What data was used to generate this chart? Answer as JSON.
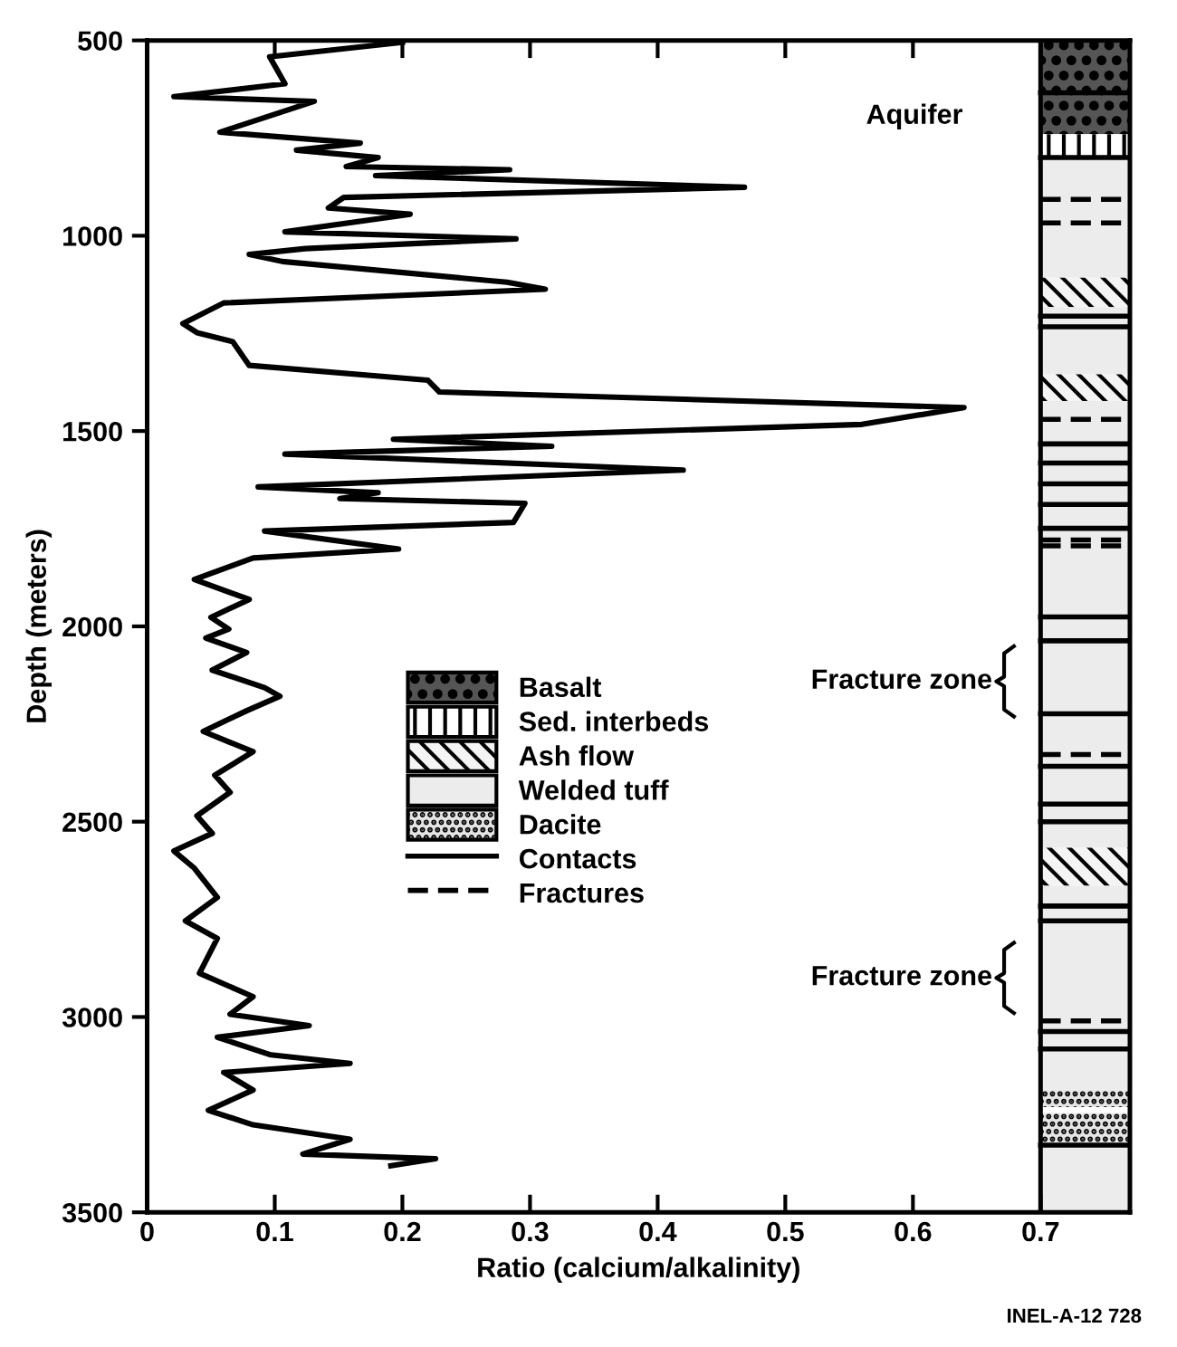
{
  "chart_data": {
    "type": "line",
    "xlabel": "Ratio (calcium/alkalinity)",
    "ylabel": "Depth (meters)",
    "series": [
      {
        "color": "#000000",
        "x": [
          0.2,
          0.096,
          0.108,
          0.021,
          0.131,
          0.057,
          0.167,
          0.117,
          0.181,
          0.156,
          0.284,
          0.179,
          0.468,
          0.154,
          0.142,
          0.206,
          0.108,
          0.289,
          0.124,
          0.08,
          0.106,
          0.282,
          0.312,
          0.06,
          0.028,
          0.039,
          0.067,
          0.08,
          0.22,
          0.229,
          0.64,
          0.56,
          0.193,
          0.317,
          0.108,
          0.42,
          0.087,
          0.181,
          0.151,
          0.296,
          0.287,
          0.092,
          0.197,
          0.083,
          0.037,
          0.08,
          0.05,
          0.064,
          0.046,
          0.078,
          0.051,
          0.092,
          0.104,
          0.078,
          0.044,
          0.083,
          0.053,
          0.065,
          0.039,
          0.051,
          0.021,
          0.037,
          0.055,
          0.03,
          0.055,
          0.041,
          0.083,
          0.065,
          0.127,
          0.055,
          0.097,
          0.159,
          0.06,
          0.083,
          0.048,
          0.083,
          0.159,
          0.122,
          0.226,
          0.191
        ],
        "values": [
          505,
          542,
          611,
          644,
          656,
          735,
          763,
          781,
          800,
          823,
          831,
          846,
          876,
          902,
          929,
          945,
          990,
          1008,
          1033,
          1048,
          1066,
          1119,
          1137,
          1172,
          1225,
          1248,
          1271,
          1332,
          1370,
          1400,
          1440,
          1483,
          1521,
          1539,
          1559,
          1600,
          1643,
          1658,
          1673,
          1685,
          1734,
          1756,
          1802,
          1825,
          1880,
          1931,
          1977,
          2007,
          2030,
          2067,
          2112,
          2157,
          2179,
          2216,
          2269,
          2321,
          2381,
          2425,
          2485,
          2530,
          2575,
          2619,
          2694,
          2754,
          2799,
          2888,
          2948,
          2993,
          3022,
          3052,
          3097,
          3119,
          3142,
          3187,
          3239,
          3276,
          3313,
          3351,
          3363,
          3381
        ]
      }
    ],
    "xlim": [
      0,
      0.77
    ],
    "xticks": [
      0,
      0.1,
      0.2,
      0.3,
      0.4,
      0.5,
      0.6,
      0.7
    ],
    "ylim": [
      3500,
      500
    ],
    "yticks": [
      500,
      1000,
      1500,
      2000,
      2500,
      3000,
      3500
    ],
    "line_style": "solid",
    "marker": "none",
    "grid": false,
    "legend": "left",
    "bands": [
      {
        "axis": "y",
        "from": 500,
        "to": 634,
        "label": "Basalt",
        "color": "#555555"
      },
      {
        "axis": "y",
        "from": 634,
        "to": 740,
        "color": "#555555"
      },
      {
        "axis": "y",
        "from": 740,
        "to": 800,
        "label": "Sed. interbeds",
        "color": "#ffffff"
      },
      {
        "axis": "y",
        "from": 1107,
        "to": 1183,
        "label": "Ash flow",
        "color": "#f4f4f4"
      },
      {
        "axis": "y",
        "from": 800,
        "to": 1107,
        "label": "Welded tuff",
        "color": "#ececec"
      },
      {
        "axis": "y",
        "from": 1183,
        "to": 1355,
        "color": "#ececec"
      },
      {
        "axis": "y",
        "from": 1355,
        "to": 1423,
        "color": "#f4f4f4"
      },
      {
        "axis": "y",
        "from": 1423,
        "to": 2567,
        "color": "#ececec"
      },
      {
        "axis": "y",
        "from": 2567,
        "to": 2664,
        "color": "#f4f4f4"
      },
      {
        "axis": "y",
        "from": 2664,
        "to": 3187,
        "color": "#ececec"
      },
      {
        "axis": "y",
        "from": 3187,
        "to": 3231,
        "label": "Dacite",
        "color": "#e4e4e4"
      },
      {
        "axis": "y",
        "from": 3246,
        "to": 3321,
        "color": "#e4e4e4"
      },
      {
        "axis": "y",
        "from": 3321,
        "to": 3500,
        "color": "#ececec"
      }
    ],
    "ref_lines": [
      {
        "axis": "x",
        "value": 0.7
      },
      {
        "axis": "y",
        "value": 634,
        "label": "Contacts",
        "line_style": "solid"
      },
      {
        "axis": "y",
        "value": 800,
        "line_style": "solid"
      },
      {
        "axis": "y",
        "value": 907,
        "label": "Fractures",
        "line_style": "dashed"
      },
      {
        "axis": "y",
        "value": 967,
        "line_style": "dashed"
      },
      {
        "axis": "y",
        "value": 1206,
        "line_style": "solid"
      },
      {
        "axis": "y",
        "value": 1233,
        "line_style": "solid"
      },
      {
        "axis": "y",
        "value": 1470,
        "line_style": "dashed"
      },
      {
        "axis": "y",
        "value": 1533,
        "line_style": "solid"
      },
      {
        "axis": "y",
        "value": 1582,
        "line_style": "solid"
      },
      {
        "axis": "y",
        "value": 1635,
        "line_style": "solid"
      },
      {
        "axis": "y",
        "value": 1688,
        "line_style": "solid"
      },
      {
        "axis": "y",
        "value": 1749,
        "line_style": "solid"
      },
      {
        "axis": "y",
        "value": 1779,
        "line_style": "dashed"
      },
      {
        "axis": "y",
        "value": 1794,
        "line_style": "dashed"
      },
      {
        "axis": "y",
        "value": 1976,
        "line_style": "solid"
      },
      {
        "axis": "y",
        "value": 2037,
        "line_style": "solid"
      },
      {
        "axis": "y",
        "value": 2224,
        "line_style": "solid"
      },
      {
        "axis": "y",
        "value": 2328,
        "line_style": "dashed"
      },
      {
        "axis": "y",
        "value": 2358,
        "line_style": "solid"
      },
      {
        "axis": "y",
        "value": 2455,
        "line_style": "solid"
      },
      {
        "axis": "y",
        "value": 2500,
        "line_style": "solid"
      },
      {
        "axis": "y",
        "value": 2716,
        "line_style": "solid"
      },
      {
        "axis": "y",
        "value": 2754,
        "line_style": "solid"
      },
      {
        "axis": "y",
        "value": 3010,
        "line_style": "dashed"
      },
      {
        "axis": "y",
        "value": 3037,
        "line_style": "solid"
      },
      {
        "axis": "y",
        "value": 3082,
        "line_style": "solid"
      },
      {
        "axis": "y",
        "value": 3328,
        "line_style": "solid"
      }
    ],
    "annotations": [
      "Aquifer",
      "Fracture zone",
      "Fracture zone",
      "INEL-A-12 728"
    ]
  }
}
